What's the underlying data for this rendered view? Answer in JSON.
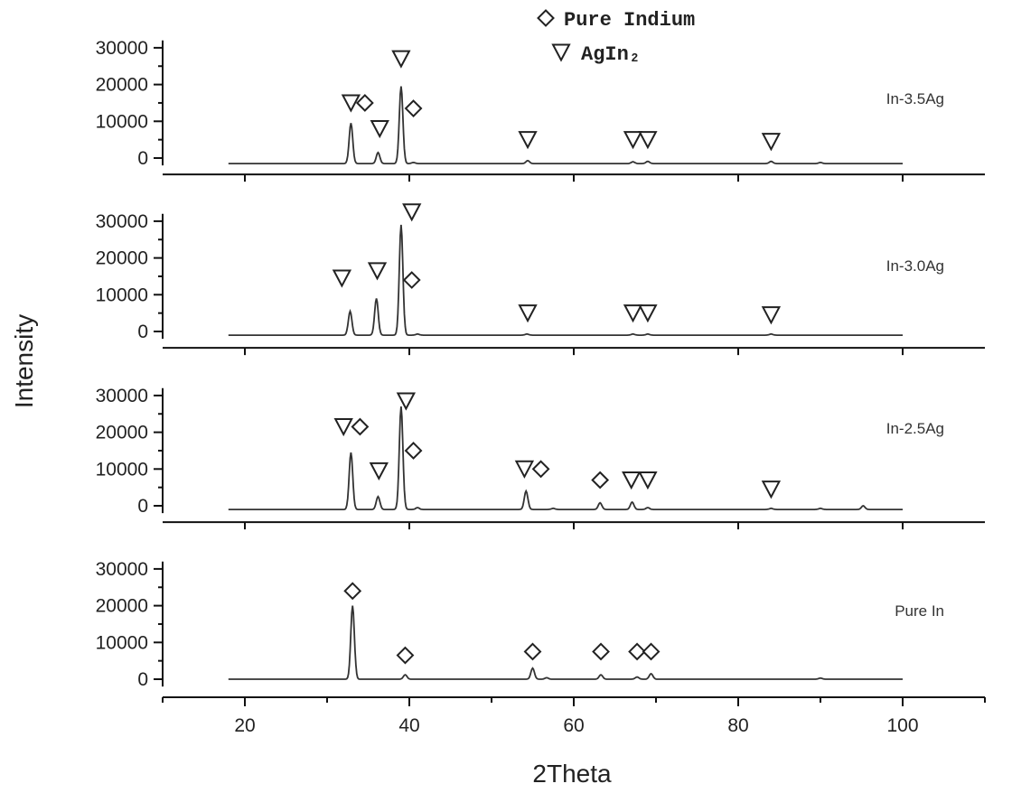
{
  "chart_data": {
    "type": "line",
    "xlabel": "2Theta",
    "ylabel": "Intensity",
    "xlim": [
      10,
      110
    ],
    "x_ticks": [
      20,
      40,
      60,
      80,
      100
    ],
    "ylim": [
      -2000,
      32000
    ],
    "y_ticks": [
      0,
      10000,
      20000,
      30000
    ],
    "legend": {
      "placement": "top-center",
      "entries": [
        {
          "symbol": "diamond",
          "label": "Pure Indium"
        },
        {
          "symbol": "triangle-down",
          "label": "AgIn₂"
        }
      ]
    },
    "series": [
      {
        "name": "In-3.5Ag",
        "baseline": -1500,
        "x_range": [
          18,
          100
        ],
        "peaks": [
          {
            "x": 32.9,
            "y": 11000
          },
          {
            "x": 36.2,
            "y": 3000
          },
          {
            "x": 39.0,
            "y": 21000
          },
          {
            "x": 40.5,
            "y": 300
          },
          {
            "x": 54.4,
            "y": 800
          },
          {
            "x": 67.2,
            "y": 500
          },
          {
            "x": 69.0,
            "y": 600
          },
          {
            "x": 84.0,
            "y": 600
          },
          {
            "x": 90.0,
            "y": 300
          }
        ],
        "markers": [
          {
            "x": 32.9,
            "y": 15000,
            "type": "triangle-down"
          },
          {
            "x": 34.6,
            "y": 15000,
            "type": "diamond"
          },
          {
            "x": 36.4,
            "y": 8000,
            "type": "triangle-down"
          },
          {
            "x": 39.0,
            "y": 27000,
            "type": "triangle-down"
          },
          {
            "x": 40.5,
            "y": 13500,
            "type": "diamond"
          },
          {
            "x": 54.4,
            "y": 5000,
            "type": "triangle-down"
          },
          {
            "x": 67.2,
            "y": 5000,
            "type": "triangle-down"
          },
          {
            "x": 69.0,
            "y": 5000,
            "type": "triangle-down"
          },
          {
            "x": 84.0,
            "y": 4500,
            "type": "triangle-down"
          }
        ]
      },
      {
        "name": "In-3.0Ag",
        "baseline": -1000,
        "x_range": [
          18,
          100
        ],
        "peaks": [
          {
            "x": 32.8,
            "y": 6500
          },
          {
            "x": 36.0,
            "y": 10000
          },
          {
            "x": 39.0,
            "y": 30000
          },
          {
            "x": 41.0,
            "y": 300
          },
          {
            "x": 54.3,
            "y": 300
          },
          {
            "x": 67.2,
            "y": 300
          },
          {
            "x": 69.0,
            "y": 300
          },
          {
            "x": 84.0,
            "y": 300
          }
        ],
        "markers": [
          {
            "x": 31.8,
            "y": 14500,
            "type": "triangle-down"
          },
          {
            "x": 36.1,
            "y": 16500,
            "type": "triangle-down"
          },
          {
            "x": 40.3,
            "y": 32500,
            "type": "triangle-down"
          },
          {
            "x": 40.3,
            "y": 14000,
            "type": "diamond"
          },
          {
            "x": 54.4,
            "y": 5000,
            "type": "triangle-down"
          },
          {
            "x": 67.2,
            "y": 5000,
            "type": "triangle-down"
          },
          {
            "x": 69.0,
            "y": 5000,
            "type": "triangle-down"
          },
          {
            "x": 84.0,
            "y": 4500,
            "type": "triangle-down"
          }
        ]
      },
      {
        "name": "In-2.5Ag",
        "baseline": -1000,
        "x_range": [
          18,
          100
        ],
        "peaks": [
          {
            "x": 32.9,
            "y": 15500
          },
          {
            "x": 36.2,
            "y": 3500
          },
          {
            "x": 39.0,
            "y": 28000
          },
          {
            "x": 41.0,
            "y": 500
          },
          {
            "x": 54.2,
            "y": 5000
          },
          {
            "x": 57.5,
            "y": 300
          },
          {
            "x": 63.2,
            "y": 1800
          },
          {
            "x": 67.1,
            "y": 2000
          },
          {
            "x": 69.0,
            "y": 500
          },
          {
            "x": 84.0,
            "y": 300
          },
          {
            "x": 90.0,
            "y": 300
          },
          {
            "x": 95.2,
            "y": 1000
          }
        ],
        "markers": [
          {
            "x": 32.0,
            "y": 21500,
            "type": "triangle-down"
          },
          {
            "x": 34.0,
            "y": 21500,
            "type": "diamond"
          },
          {
            "x": 36.3,
            "y": 9500,
            "type": "triangle-down"
          },
          {
            "x": 39.6,
            "y": 28500,
            "type": "triangle-down"
          },
          {
            "x": 40.5,
            "y": 15000,
            "type": "diamond"
          },
          {
            "x": 54.0,
            "y": 10000,
            "type": "triangle-down"
          },
          {
            "x": 56.0,
            "y": 10000,
            "type": "diamond"
          },
          {
            "x": 63.2,
            "y": 7000,
            "type": "diamond"
          },
          {
            "x": 67.0,
            "y": 7000,
            "type": "triangle-down"
          },
          {
            "x": 69.0,
            "y": 7000,
            "type": "triangle-down"
          },
          {
            "x": 84.0,
            "y": 4500,
            "type": "triangle-down"
          }
        ]
      },
      {
        "name": "Pure In",
        "baseline": 0,
        "x_range": [
          18,
          100
        ],
        "peaks": [
          {
            "x": 33.1,
            "y": 20000
          },
          {
            "x": 39.5,
            "y": 1200
          },
          {
            "x": 55.0,
            "y": 3000
          },
          {
            "x": 56.7,
            "y": 400
          },
          {
            "x": 63.3,
            "y": 1200
          },
          {
            "x": 67.7,
            "y": 600
          },
          {
            "x": 69.4,
            "y": 1500
          },
          {
            "x": 90.0,
            "y": 300
          }
        ],
        "markers": [
          {
            "x": 33.1,
            "y": 24000,
            "type": "diamond"
          },
          {
            "x": 39.5,
            "y": 6500,
            "type": "diamond"
          },
          {
            "x": 55.0,
            "y": 7500,
            "type": "diamond"
          },
          {
            "x": 63.3,
            "y": 7500,
            "type": "diamond"
          },
          {
            "x": 67.7,
            "y": 7500,
            "type": "diamond"
          },
          {
            "x": 69.4,
            "y": 7500,
            "type": "diamond"
          }
        ]
      }
    ]
  }
}
